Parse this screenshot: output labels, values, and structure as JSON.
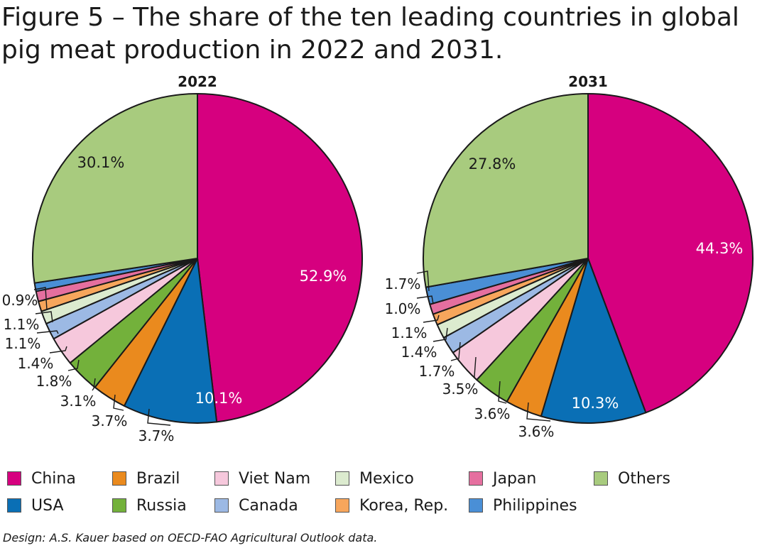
{
  "figure": {
    "title": "Figure 5 – The share of the ten leading countries in global pig meat production in 2022 and 2031.",
    "credit": "Design: A.S. Kauer based on OECD-FAO Agricultural Outlook data."
  },
  "colors": {
    "China": "#d6007f",
    "USA": "#0a6fb5",
    "Brazil": "#ea8a1e",
    "Russia": "#73b13b",
    "Viet Nam": "#f6c8dc",
    "Canada": "#9cb9e4",
    "Mexico": "#dcebcf",
    "Korea, Rep.": "#f7a65c",
    "Japan": "#e56f9f",
    "Philippines": "#4a8fd6",
    "Others": "#a8cb7e"
  },
  "legend": [
    {
      "name": "China"
    },
    {
      "name": "Brazil"
    },
    {
      "name": "Viet Nam"
    },
    {
      "name": "Mexico"
    },
    {
      "name": "Japan"
    },
    {
      "name": "Others"
    },
    {
      "name": "USA"
    },
    {
      "name": "Russia"
    },
    {
      "name": "Canada"
    },
    {
      "name": "Korea, Rep."
    },
    {
      "name": "Philippines"
    }
  ],
  "chart_data": [
    {
      "type": "pie",
      "title": "2022",
      "slices": [
        {
          "name": "China",
          "value": 52.9,
          "label": "52.9%"
        },
        {
          "name": "USA",
          "value": 10.1,
          "label": "10.1%"
        },
        {
          "name": "Brazil",
          "value": 3.7,
          "label": "3.7%"
        },
        {
          "name": "Russia",
          "value": 3.7,
          "label": "3.7%"
        },
        {
          "name": "Viet Nam",
          "value": 3.1,
          "label": "3.1%"
        },
        {
          "name": "Canada",
          "value": 1.8,
          "label": "1.8%"
        },
        {
          "name": "Mexico",
          "value": 1.4,
          "label": "1.4%"
        },
        {
          "name": "Korea, Rep.",
          "value": 1.1,
          "label": "1.1%"
        },
        {
          "name": "Japan",
          "value": 1.1,
          "label": "1.1%"
        },
        {
          "name": "Philippines",
          "value": 0.9,
          "label": "0.9%"
        },
        {
          "name": "Others",
          "value": 30.1,
          "label": "30.1%"
        }
      ]
    },
    {
      "type": "pie",
      "title": "2031",
      "slices": [
        {
          "name": "China",
          "value": 44.3,
          "label": "44.3%"
        },
        {
          "name": "USA",
          "value": 10.3,
          "label": "10.3%"
        },
        {
          "name": "Brazil",
          "value": 3.6,
          "label": "3.6%"
        },
        {
          "name": "Russia",
          "value": 3.6,
          "label": "3.6%"
        },
        {
          "name": "Viet Nam",
          "value": 3.5,
          "label": "3.5%"
        },
        {
          "name": "Canada",
          "value": 1.7,
          "label": "1.7%"
        },
        {
          "name": "Mexico",
          "value": 1.4,
          "label": "1.4%"
        },
        {
          "name": "Korea, Rep.",
          "value": 1.1,
          "label": "1.1%"
        },
        {
          "name": "Japan",
          "value": 1.0,
          "label": "1.0%"
        },
        {
          "name": "Philippines",
          "value": 1.7,
          "label": "1.7%"
        },
        {
          "name": "Others",
          "value": 27.8,
          "label": "27.8%"
        }
      ]
    }
  ]
}
